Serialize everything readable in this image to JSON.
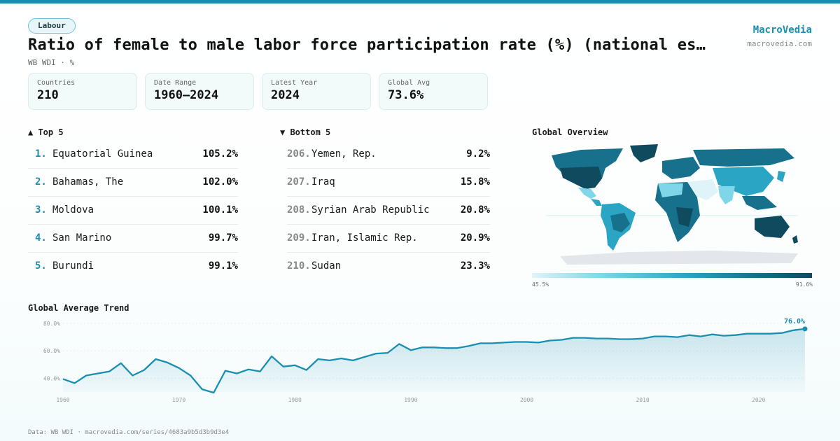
{
  "header": {
    "category": "Labour",
    "title": "Ratio of female to male labor force participation rate (%) (national est…",
    "subtitle": "WB WDI · %",
    "brand": "MacroVedia",
    "brand_url": "macrovedia.com"
  },
  "stats": [
    {
      "label": "Countries",
      "value": "210"
    },
    {
      "label": "Date Range",
      "value": "1960–2024"
    },
    {
      "label": "Latest Year",
      "value": "2024"
    },
    {
      "label": "Global Avg",
      "value": "73.6%"
    }
  ],
  "top5": {
    "heading": "▲ Top 5",
    "items": [
      {
        "rank": "1.",
        "name": "Equatorial Guinea",
        "value": "105.2%"
      },
      {
        "rank": "2.",
        "name": "Bahamas, The",
        "value": "102.0%"
      },
      {
        "rank": "3.",
        "name": "Moldova",
        "value": "100.1%"
      },
      {
        "rank": "4.",
        "name": "San Marino",
        "value": "99.7%"
      },
      {
        "rank": "5.",
        "name": "Burundi",
        "value": "99.1%"
      }
    ]
  },
  "bottom5": {
    "heading": "▼ Bottom 5",
    "items": [
      {
        "rank": "206.",
        "name": "Yemen, Rep.",
        "value": "9.2%"
      },
      {
        "rank": "207.",
        "name": "Iraq",
        "value": "15.8%"
      },
      {
        "rank": "208.",
        "name": "Syrian Arab Republic",
        "value": "20.8%"
      },
      {
        "rank": "209.",
        "name": "Iran, Islamic Rep.",
        "value": "20.9%"
      },
      {
        "rank": "210.",
        "name": "Sudan",
        "value": "23.3%"
      }
    ]
  },
  "map": {
    "heading": "Global Overview",
    "legend_min": "45.5%",
    "legend_max": "91.6%",
    "colors": [
      "#dff4f8",
      "#7fd6e8",
      "#2aa6c4",
      "#17708c",
      "#0f4a5e"
    ]
  },
  "trend": {
    "heading": "Global Average Trend"
  },
  "footer": "Data: WB WDI · macrovedia.com/series/4683a9b5d3b9d3e4",
  "chart_data": {
    "type": "area",
    "title": "Global Average Trend",
    "color": "#1a8fb0",
    "ylim": [
      30,
      80
    ],
    "yticks": [
      "40.0%",
      "60.0%",
      "80.0%"
    ],
    "ytick_values": [
      40,
      60,
      80
    ],
    "xticks": [
      "1960",
      "1970",
      "1980",
      "1990",
      "2000",
      "2010",
      "2020"
    ],
    "xtick_values": [
      1960,
      1970,
      1980,
      1990,
      2000,
      2010,
      2020
    ],
    "end_label": "76.0%",
    "x": [
      1960,
      1961,
      1962,
      1963,
      1964,
      1965,
      1966,
      1967,
      1968,
      1969,
      1970,
      1971,
      1972,
      1973,
      1974,
      1975,
      1976,
      1977,
      1978,
      1979,
      1980,
      1981,
      1982,
      1983,
      1984,
      1985,
      1986,
      1987,
      1988,
      1989,
      1990,
      1991,
      1992,
      1993,
      1994,
      1995,
      1996,
      1997,
      1998,
      1999,
      2000,
      2001,
      2002,
      2003,
      2004,
      2005,
      2006,
      2007,
      2008,
      2009,
      2010,
      2011,
      2012,
      2013,
      2014,
      2015,
      2016,
      2017,
      2018,
      2019,
      2020,
      2021,
      2022,
      2023,
      2024
    ],
    "values": [
      39.5,
      36.5,
      42,
      43.5,
      45,
      51,
      42,
      46,
      54,
      51.5,
      47.5,
      42,
      32,
      29.5,
      45.5,
      43.5,
      46.5,
      45,
      56,
      48.5,
      49.5,
      46,
      54,
      53,
      54.5,
      53,
      55.5,
      58,
      58.5,
      65,
      60.5,
      62.5,
      62.5,
      62,
      62,
      63.5,
      65.5,
      65.5,
      66,
      66.5,
      66.5,
      66,
      67.5,
      68,
      69.5,
      69.5,
      69,
      69,
      68.5,
      68.5,
      69,
      70.5,
      70.5,
      70,
      71.5,
      70.5,
      72,
      71,
      71.5,
      72.5,
      72.5,
      72.5,
      73,
      75,
      76
    ]
  }
}
